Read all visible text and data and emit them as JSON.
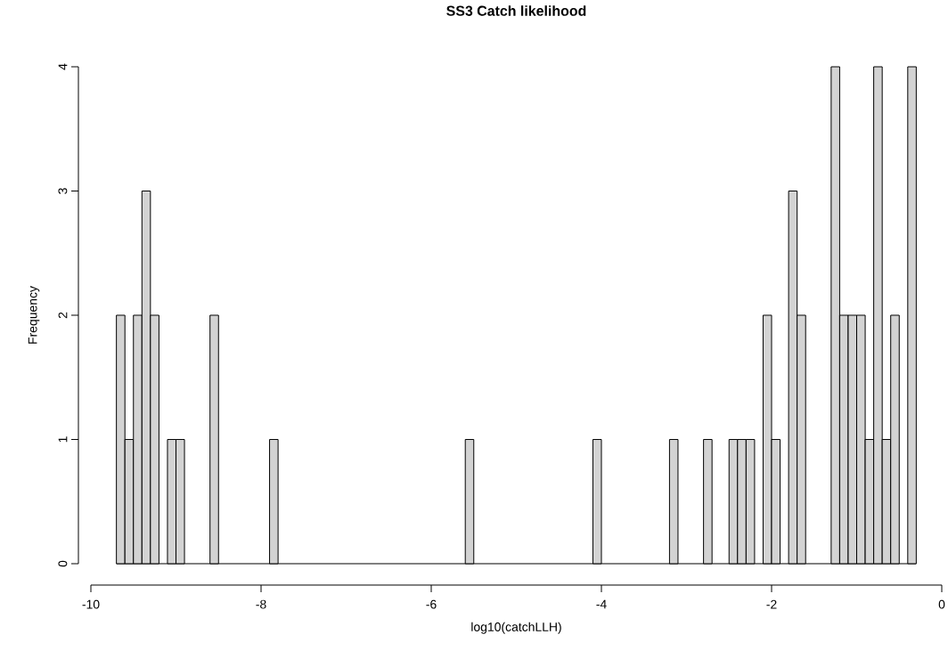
{
  "chart_data": {
    "type": "histogram",
    "title": "SS3 Catch likelihood",
    "xlabel": "log10(catchLLH)",
    "ylabel": "Frequency",
    "color": "#d3d3d3",
    "bins": [
      -9.7,
      -9.6,
      -9.5,
      -9.4,
      -9.3,
      -9.2,
      -9.1,
      -9.0,
      -8.9,
      -8.8,
      -8.7,
      -8.6,
      -8.5,
      -8.4,
      -8.3,
      -8.2,
      -8.1,
      -8.0,
      -7.9,
      -7.8,
      -7.7,
      -7.6,
      -7.5,
      -7.4,
      -7.3,
      -7.2,
      -7.1,
      -7.0,
      -6.9,
      -6.8,
      -6.7,
      -6.6,
      -6.5,
      -6.4,
      -6.3,
      -6.2,
      -6.1,
      -6.0,
      -5.9,
      -5.8,
      -5.7,
      -5.6,
      -5.5,
      -5.4,
      -5.3,
      -5.2,
      -5.1,
      -5.0,
      -4.9,
      -4.8,
      -4.7,
      -4.6,
      -4.5,
      -4.4,
      -4.3,
      -4.2,
      -4.1,
      -4.0,
      -3.9,
      -3.8,
      -3.7,
      -3.6,
      -3.5,
      -3.4,
      -3.3,
      -3.2,
      -3.1,
      -3.0,
      -2.9,
      -2.8,
      -2.7,
      -2.6,
      -2.5,
      -2.4,
      -2.3,
      -2.2,
      -2.1,
      -2.0,
      -1.9,
      -1.8,
      -1.7,
      -1.6,
      -1.5,
      -1.4,
      -1.3,
      -1.2,
      -1.1,
      -1.0,
      -0.9,
      -0.8,
      -0.7,
      -0.6,
      -0.5,
      -0.4,
      -0.3
    ],
    "values": [
      2,
      1,
      2,
      3,
      2,
      0,
      1,
      1,
      0,
      0,
      0,
      2,
      0,
      0,
      0,
      0,
      0,
      0,
      1,
      0,
      0,
      0,
      0,
      0,
      0,
      0,
      0,
      0,
      0,
      0,
      0,
      0,
      0,
      0,
      0,
      0,
      0,
      0,
      0,
      0,
      0,
      1,
      0,
      0,
      0,
      0,
      0,
      0,
      0,
      0,
      0,
      0,
      0,
      0,
      0,
      0,
      1,
      0,
      0,
      0,
      0,
      0,
      0,
      0,
      0,
      1,
      0,
      0,
      0,
      1,
      0,
      0,
      1,
      1,
      1,
      0,
      2,
      1,
      0,
      3,
      2,
      0,
      0,
      0,
      4,
      2,
      2,
      2,
      1,
      4,
      1,
      2,
      0,
      4
    ],
    "xlim": [
      -10,
      0
    ],
    "ylim": [
      0,
      4
    ],
    "xticks": [
      -10,
      -8,
      -6,
      -4,
      -2,
      0
    ],
    "yticks": [
      0,
      1,
      2,
      3,
      4
    ]
  }
}
